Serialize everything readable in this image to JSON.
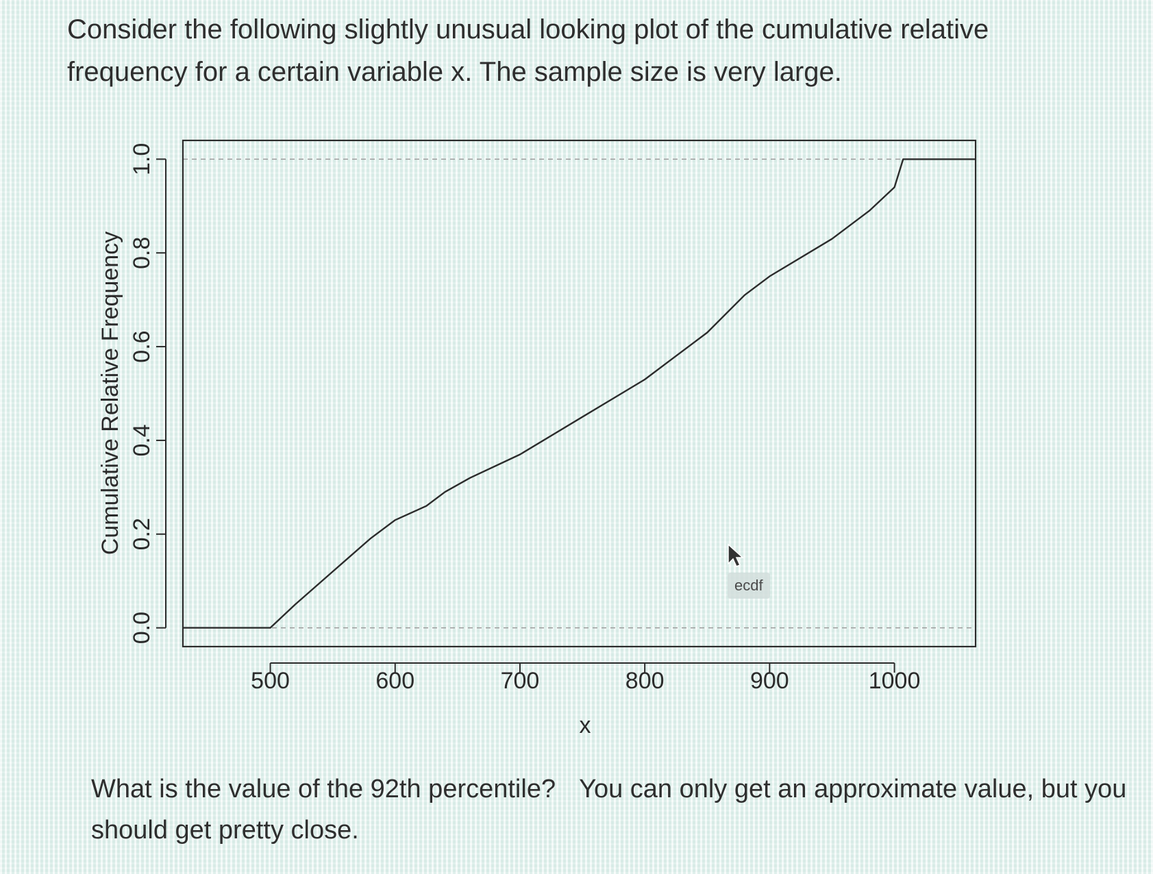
{
  "question": {
    "intro": "Consider the following slightly unusual looking plot of the cumulative relative frequency for a certain variable x. The sample size is very large."
  },
  "followup": {
    "prompt": "What is the value of the 92th percentile?",
    "hint": "You can only get an approximate value, but you should get pretty close."
  },
  "tooltip": {
    "label": "ecdf"
  },
  "chart_data": {
    "type": "line",
    "xlabel": "x",
    "ylabel": "Cumulative Relative Frequency",
    "xlim": [
      430,
      1065
    ],
    "ylim": [
      -0.04,
      1.04
    ],
    "xticks": [
      500,
      600,
      700,
      800,
      900,
      1000
    ],
    "yticks": [
      0.0,
      0.2,
      0.4,
      0.6,
      0.8,
      1.0
    ],
    "ytick_labels": [
      "0.0",
      "0.2",
      "0.4",
      "0.6",
      "0.8",
      "1.0"
    ],
    "reference_lines": [
      0,
      1
    ],
    "grid": false,
    "series": [
      {
        "x": [
          430,
          500,
          520,
          550,
          580,
          600,
          625,
          640,
          660,
          700,
          750,
          800,
          820,
          850,
          880,
          900,
          950,
          980,
          1000,
          1007,
          1065
        ],
        "y": [
          0.0,
          0.0,
          0.05,
          0.12,
          0.19,
          0.23,
          0.26,
          0.29,
          0.32,
          0.37,
          0.45,
          0.53,
          0.57,
          0.63,
          0.71,
          0.75,
          0.83,
          0.89,
          0.94,
          1.0,
          1.0
        ]
      }
    ]
  }
}
